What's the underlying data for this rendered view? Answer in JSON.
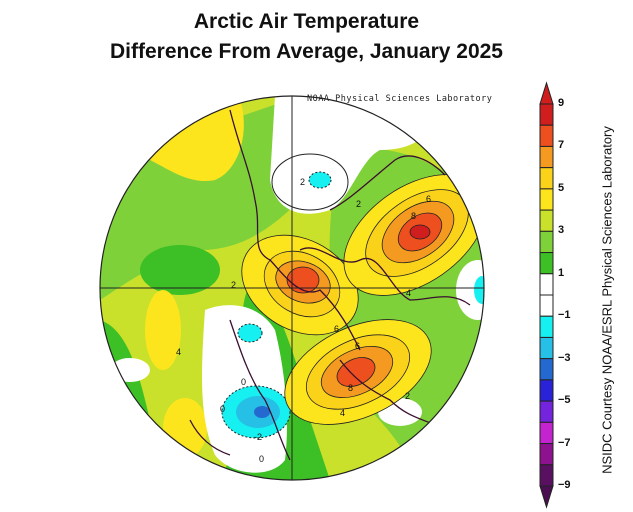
{
  "title": {
    "line1": "Arctic Air Temperature",
    "line2": "Difference From Average, January 2025"
  },
  "map": {
    "source_label": "NOAA Physical Sciences Laboratory",
    "projection": "north polar stereographic",
    "contour_labels": [
      "2",
      "6",
      "8",
      "2",
      "4",
      "6",
      "6",
      "8",
      "2",
      "4",
      "4",
      "0",
      "0",
      "-2",
      "0",
      "2"
    ]
  },
  "colorbar": {
    "tick_labels": [
      "9",
      "7",
      "5",
      "3",
      "1",
      "-1",
      "-3",
      "-5",
      "-7",
      "-9"
    ],
    "min": -9,
    "max": 9,
    "step": 1,
    "colors": [
      "#d01e1e",
      "#ee4f1e",
      "#f59a20",
      "#fbd21a",
      "#fde51e",
      "#c9e12a",
      "#7fd13a",
      "#3dbf26",
      "#ffffff",
      "#ffffff",
      "#17f0f0",
      "#26bfe6",
      "#2469cf",
      "#2a22d6",
      "#7424dc",
      "#c424d0",
      "#8e1290",
      "#5a1060"
    ],
    "top_arrow_color": "#d01e1e",
    "bottom_arrow_color": "#4a0f50"
  },
  "credit": "NSIDC Courtesy NOAA/ESRL Physical Sciences Laboratory"
}
